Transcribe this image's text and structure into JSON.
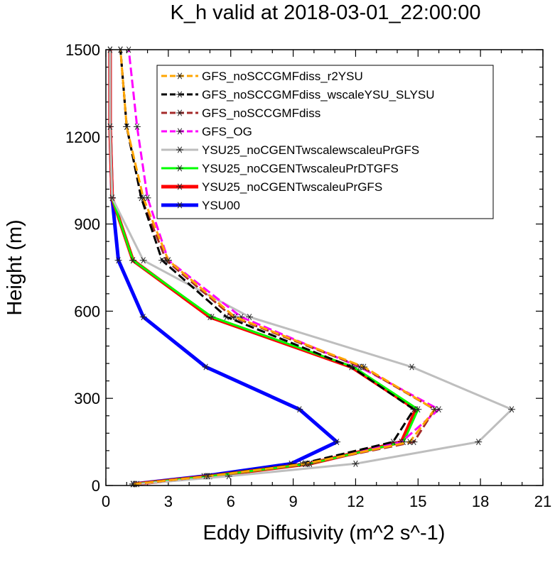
{
  "chart_data": {
    "type": "line",
    "title": "K_h valid at 2018-03-01_22:00:00",
    "xlabel": "Eddy Diffusivity (m^2 s^-1)",
    "ylabel": "Height (m)",
    "xlim": [
      0,
      21
    ],
    "ylim": [
      0,
      1500
    ],
    "xticks": [
      "0",
      "3",
      "6",
      "9",
      "12",
      "15",
      "18",
      "21"
    ],
    "yticks": [
      "0",
      "300",
      "600",
      "900",
      "1200",
      "1500"
    ],
    "legend_position": "top-right",
    "series": [
      {
        "name": "GFS_noSCCGMFdiss_r2YSU",
        "color": "#FFA500",
        "dash": "dash",
        "width": 3,
        "x": [
          1.3,
          4.9,
          9.6,
          14.6,
          15.8,
          12.4,
          6.2,
          3.0,
          1.8,
          1.0,
          0.7
        ],
        "y": [
          5,
          32,
          75,
          150,
          262,
          408,
          580,
          775,
          990,
          1235,
          1500
        ]
      },
      {
        "name": "GFS_noSCCGMFdiss_wscaleYSU_SLYSU",
        "color": "#000000",
        "dash": "dash",
        "width": 3,
        "x": [
          1.3,
          4.8,
          9.4,
          13.8,
          14.8,
          11.8,
          5.8,
          2.7,
          1.7,
          1.0,
          0.7
        ],
        "y": [
          5,
          32,
          75,
          150,
          262,
          408,
          580,
          775,
          990,
          1235,
          1500
        ]
      },
      {
        "name": "GFS_noSCCGMFdiss",
        "color": "#A52A2A",
        "dash": "dash",
        "width": 3,
        "x": [
          1.3,
          4.9,
          9.7,
          14.8,
          15.8,
          12.3,
          6.1,
          2.9,
          1.7,
          1.0,
          0.7
        ],
        "y": [
          5,
          32,
          75,
          150,
          262,
          408,
          580,
          775,
          990,
          1235,
          1500
        ]
      },
      {
        "name": "GFS_OG",
        "color": "#FF00FF",
        "dash": "dash",
        "width": 3,
        "x": [
          1.3,
          4.9,
          9.6,
          14.2,
          16.0,
          12.2,
          6.5,
          3.0,
          2.0,
          1.5,
          1.1
        ],
        "y": [
          5,
          32,
          75,
          150,
          262,
          408,
          580,
          775,
          990,
          1235,
          1500
        ]
      },
      {
        "name": "YSU25_noCGENTwscalewscaleuPrGFS",
        "color": "#BEBEBE",
        "dash": "solid",
        "width": 3,
        "x": [
          1.5,
          5.9,
          12.0,
          17.9,
          19.5,
          14.7,
          6.9,
          1.8,
          0.3,
          0.2,
          0.2
        ],
        "y": [
          5,
          32,
          75,
          150,
          262,
          408,
          580,
          775,
          990,
          1235,
          1500
        ]
      },
      {
        "name": "YSU25_noCGENTwscaleuPrDTGFS",
        "color": "#00FF00",
        "dash": "solid",
        "width": 3,
        "x": [
          1.4,
          5.0,
          9.8,
          14.3,
          15.0,
          11.9,
          5.1,
          1.3,
          0.3,
          0.2,
          0.2
        ],
        "y": [
          5,
          32,
          75,
          150,
          262,
          408,
          580,
          775,
          990,
          1235,
          1500
        ]
      },
      {
        "name": "YSU25_noCGENTwscaleuPrGFS",
        "color": "#FF0000",
        "dash": "solid",
        "width": 5,
        "x": [
          1.4,
          5.0,
          9.8,
          14.2,
          14.9,
          11.8,
          5.0,
          1.3,
          0.3,
          0.2,
          0.2
        ],
        "y": [
          5,
          32,
          75,
          150,
          262,
          408,
          580,
          775,
          990,
          1235,
          1500
        ]
      },
      {
        "name": "YSU00",
        "color": "#0000FF",
        "dash": "solid",
        "width": 5,
        "x": [
          1.3,
          4.7,
          8.9,
          11.1,
          9.3,
          4.8,
          1.8,
          0.6,
          0.3,
          0.2,
          0.2
        ],
        "y": [
          5,
          32,
          75,
          150,
          262,
          408,
          580,
          775,
          990,
          1235,
          1500
        ]
      }
    ]
  }
}
